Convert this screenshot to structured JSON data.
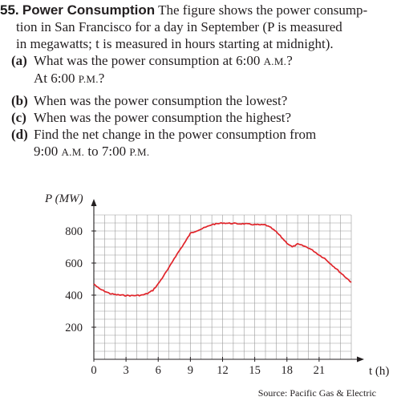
{
  "problem": {
    "number": "55.",
    "title": "Power Consumption",
    "intro_lines": [
      "The figure shows the power consump-",
      "tion in San Francisco for a day in September (P is measured",
      "in megawatts; t is measured in hours starting at midnight)."
    ],
    "parts": [
      {
        "label": "(a)",
        "lines": [
          "What was the power consumption at 6:00 A.M.?",
          "At 6:00 P.M.?"
        ]
      },
      {
        "label": "(b)",
        "lines": [
          "When was the power consumption the lowest?"
        ]
      },
      {
        "label": "(c)",
        "lines": [
          "When was the power consumption the highest?"
        ]
      },
      {
        "label": "(d)",
        "lines": [
          "Find the net change in the power consumption from",
          "9:00 A.M. to 7:00 P.M."
        ]
      }
    ]
  },
  "chart_data": {
    "type": "line",
    "ylabel": "P (MW)",
    "xlabel": "t (h)",
    "x_ticks": [
      0,
      3,
      6,
      9,
      12,
      15,
      18,
      21
    ],
    "y_ticks": [
      200,
      400,
      600,
      800
    ],
    "xlim": [
      0,
      24
    ],
    "ylim": [
      0,
      900
    ],
    "grid": true,
    "line_color": "#e0242a",
    "series": [
      {
        "x": [
          0,
          0.5,
          1,
          1.5,
          2,
          2.5,
          3,
          3.5,
          4,
          4.5,
          5,
          5.5,
          6,
          6.5,
          7,
          7.5,
          8,
          8.5,
          9,
          9.5,
          10,
          10.5,
          11,
          11.5,
          12,
          12.5,
          13,
          13.5,
          14,
          14.5,
          15,
          15.5,
          16,
          16.5,
          17,
          17.5,
          18,
          18.5,
          19,
          19.5,
          20,
          20.5,
          21,
          21.5,
          22,
          22.5,
          23,
          23.5,
          24
        ],
        "y": [
          470,
          440,
          425,
          410,
          403,
          400,
          398,
          397,
          398,
          400,
          410,
          430,
          470,
          520,
          570,
          630,
          680,
          730,
          785,
          800,
          812,
          825,
          840,
          845,
          850,
          848,
          847,
          845,
          845,
          842,
          840,
          838,
          838,
          820,
          795,
          760,
          725,
          700,
          718,
          708,
          695,
          675,
          650,
          630,
          600,
          570,
          540,
          510,
          480
        ]
      }
    ]
  },
  "source": "Source: Pacific Gas & Electric"
}
